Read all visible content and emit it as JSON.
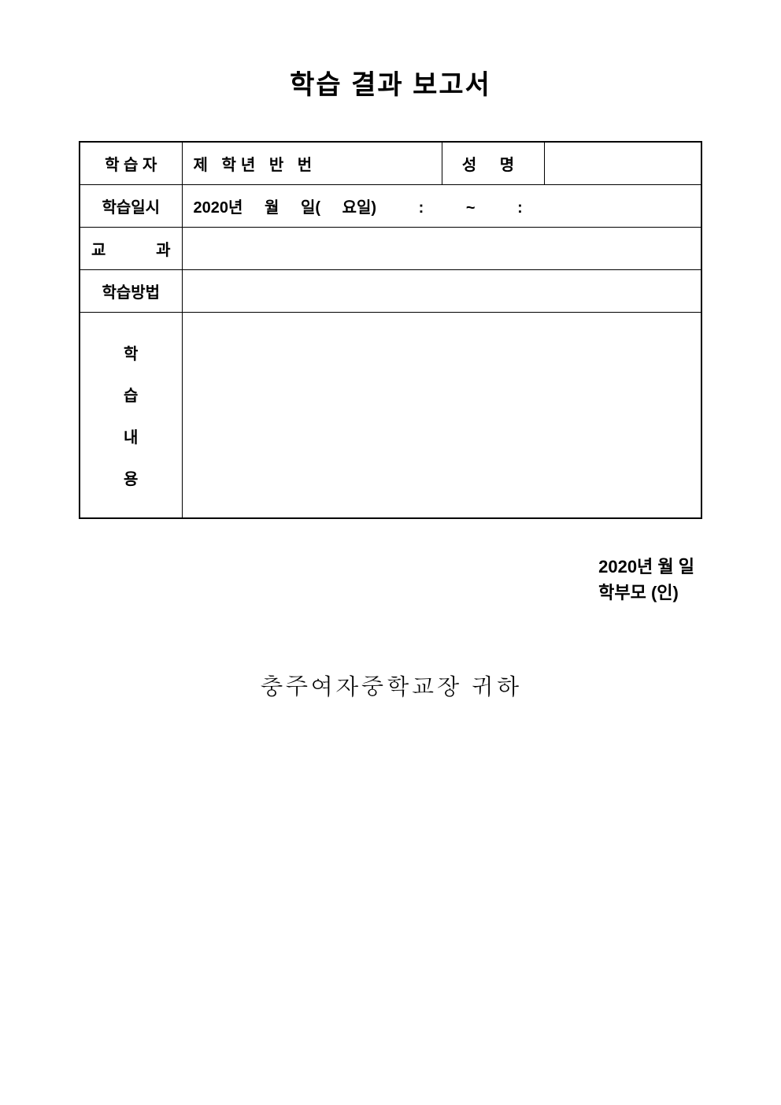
{
  "title": "학습 결과 보고서",
  "rows": {
    "learner": {
      "label": "학 습 자",
      "info": "제   학년   반   번",
      "name_label": "성   명"
    },
    "datetime": {
      "label": "학습일시",
      "year": "2020년",
      "month": "월",
      "day": "일(",
      "weekday": "요일)",
      "colon1": ":",
      "tilde": "~",
      "colon2": ":"
    },
    "subject": {
      "label": "교    과"
    },
    "method": {
      "label": "학습방법"
    },
    "content": {
      "c1": "학",
      "c2": "습",
      "c3": "내",
      "c4": "용"
    }
  },
  "signature": {
    "date": "2020년   월   일",
    "parent": "학부모        (인)"
  },
  "recipient": "충주여자중학교장 귀하",
  "colors": {
    "background": "#ffffff",
    "border": "#000000",
    "text": "#000000"
  }
}
